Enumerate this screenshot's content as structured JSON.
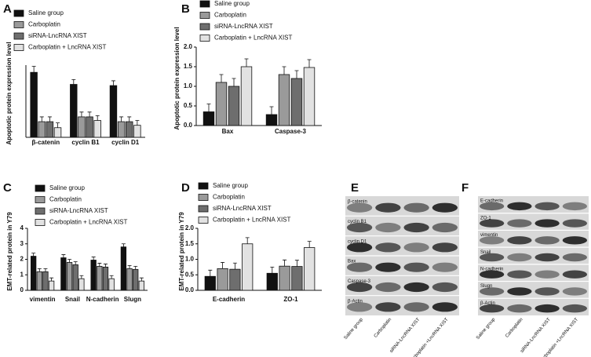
{
  "chart_data": [
    {
      "panel": "A",
      "type": "bar",
      "y_label": "Apoptotic protein expression level",
      "categories": [
        "β-catenin",
        "cyclin B1",
        "cyclin D1"
      ],
      "ylim": [
        0,
        3
      ],
      "series": [
        {
          "name": "Saline group",
          "color": "#111111",
          "values": [
            2.7,
            2.2,
            2.15
          ],
          "errors": [
            0.25,
            0.2,
            0.2
          ]
        },
        {
          "name": "Carboplatin",
          "color": "#9a9a9a",
          "values": [
            0.65,
            0.85,
            0.65
          ],
          "errors": [
            0.2,
            0.2,
            0.2
          ]
        },
        {
          "name": "siRNA-LncRNA XIST",
          "color": "#6e6e6e",
          "values": [
            0.65,
            0.85,
            0.65
          ],
          "errors": [
            0.2,
            0.2,
            0.2
          ]
        },
        {
          "name": "Carboplatin + LncRNA XIST",
          "color": "#e2e2e2",
          "values": [
            0.4,
            0.7,
            0.5
          ],
          "errors": [
            0.2,
            0.2,
            0.2
          ]
        }
      ]
    },
    {
      "panel": "B",
      "type": "bar",
      "y_label": "Apoptotic protein expression level",
      "categories": [
        "Bax",
        "Caspase-3"
      ],
      "ylim": [
        0,
        2
      ],
      "yticks": [
        {
          "value": 0,
          "label": "0.0"
        },
        {
          "value": 0.5,
          "label": "0.5"
        },
        {
          "value": 1,
          "label": "1.0"
        },
        {
          "value": 1.5,
          "label": "1.5"
        },
        {
          "value": 2,
          "label": "2.0"
        }
      ],
      "series": [
        {
          "name": "Saline group",
          "color": "#111111",
          "values": [
            0.35,
            0.28
          ],
          "errors": [
            0.2,
            0.2
          ]
        },
        {
          "name": "Carboplatin",
          "color": "#9a9a9a",
          "values": [
            1.1,
            1.3
          ],
          "errors": [
            0.2,
            0.2
          ]
        },
        {
          "name": "siRNA-LncRNA XIST",
          "color": "#6e6e6e",
          "values": [
            1.0,
            1.2
          ],
          "errors": [
            0.2,
            0.2
          ]
        },
        {
          "name": "Carboplatin + LncRNA XIST",
          "color": "#e2e2e2",
          "values": [
            1.5,
            1.48
          ],
          "errors": [
            0.2,
            0.2
          ]
        }
      ]
    },
    {
      "panel": "C",
      "type": "bar",
      "y_label": "EMT-related protein in Y79",
      "categories": [
        "vimentin",
        "Snail",
        "N-cadherin",
        "Slugn"
      ],
      "ylim": [
        0,
        4
      ],
      "yticks": [
        0,
        1,
        2,
        3,
        4
      ],
      "series": [
        {
          "name": "Saline group",
          "color": "#111111",
          "values": [
            2.2,
            2.1,
            1.95,
            2.8
          ],
          "errors": [
            0.2,
            0.2,
            0.2,
            0.2
          ]
        },
        {
          "name": "Carboplatin",
          "color": "#9a9a9a",
          "values": [
            1.2,
            1.8,
            1.55,
            1.4
          ],
          "errors": [
            0.2,
            0.2,
            0.2,
            0.2
          ]
        },
        {
          "name": "siRNA-LncRNA XIST",
          "color": "#6e6e6e",
          "values": [
            1.2,
            1.65,
            1.5,
            1.35
          ],
          "errors": [
            0.2,
            0.2,
            0.2,
            0.2
          ]
        },
        {
          "name": "Carboplatin + LncRNA XIST",
          "color": "#e2e2e2",
          "values": [
            0.6,
            0.75,
            0.75,
            0.6
          ],
          "errors": [
            0.2,
            0.2,
            0.2,
            0.2
          ]
        }
      ]
    },
    {
      "panel": "D",
      "type": "bar",
      "y_label": "EMT-related protein in Y79",
      "categories": [
        "E-cadherin",
        "ZO-1"
      ],
      "ylim": [
        0,
        2
      ],
      "yticks": [
        {
          "value": 0,
          "label": "0.0"
        },
        {
          "value": 0.5,
          "label": "0.5"
        },
        {
          "value": 1,
          "label": "1.0"
        },
        {
          "value": 1.5,
          "label": "1.5"
        },
        {
          "value": 2,
          "label": "2.0"
        }
      ],
      "series": [
        {
          "name": "Saline group",
          "color": "#111111",
          "values": [
            0.45,
            0.55
          ],
          "errors": [
            0.2,
            0.2
          ]
        },
        {
          "name": "Carboplatin",
          "color": "#9a9a9a",
          "values": [
            0.7,
            0.78
          ],
          "errors": [
            0.2,
            0.2
          ]
        },
        {
          "name": "siRNA-LncRNA XIST",
          "color": "#6e6e6e",
          "values": [
            0.68,
            0.77
          ],
          "errors": [
            0.2,
            0.2
          ]
        },
        {
          "name": "Carboplatin + LncRNA XIST",
          "color": "#e2e2e2",
          "values": [
            1.5,
            1.38
          ],
          "errors": [
            0.2,
            0.2
          ]
        }
      ]
    }
  ],
  "blots": [
    {
      "panel": "E",
      "rows": [
        "β-catenin",
        "cyclin B1",
        "cyclin D1",
        "Bax",
        "Caspase-3",
        "β-Actin"
      ],
      "lanes": [
        "Saline group",
        "Carboplatin",
        "siRNA-LncRNA XIST",
        "Carboplatin +LncRNA XIST"
      ]
    },
    {
      "panel": "F",
      "rows": [
        "E-cadherin",
        "ZO-1",
        "vimentin",
        "Snail",
        "N-cadherin",
        "Slugn",
        "β-Actin"
      ],
      "lanes": [
        "Saline group",
        "Carboplatin",
        "siRNA-LncRNA XIST",
        "Carboplatin +LncRNA XIST"
      ]
    }
  ]
}
